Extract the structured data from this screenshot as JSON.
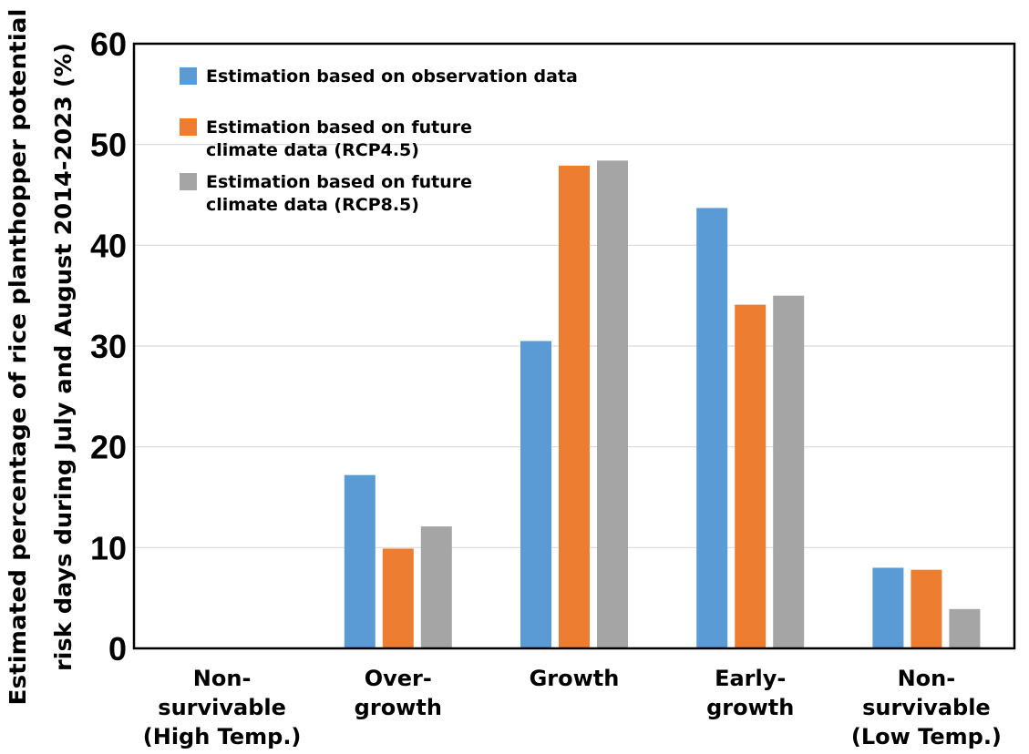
{
  "chart_data": {
    "type": "bar",
    "title": "",
    "xlabel": "",
    "ylabel_lines": [
      "Estimated percentage of rice planthopper potential",
      "risk days during July and August 2014-2023 (%)"
    ],
    "ylim": [
      0,
      60
    ],
    "yticks": [
      0,
      10,
      20,
      30,
      40,
      50,
      60
    ],
    "grid": true,
    "legend_position": "top-left",
    "categories": [
      [
        "Non-",
        "survivable",
        "(High Temp.)"
      ],
      [
        "Over-",
        "growth"
      ],
      [
        "Growth"
      ],
      [
        "Early-",
        "growth"
      ],
      [
        "Non-",
        "survivable",
        "(Low Temp.)"
      ]
    ],
    "series": [
      {
        "name": "Estimation based on observation data",
        "legend_lines": [
          "Estimation based on observation data"
        ],
        "color": "#5B9BD5",
        "values": [
          0,
          17.2,
          30.5,
          43.7,
          8.0
        ]
      },
      {
        "name": "Estimation based on future climate data (RCP4.5)",
        "legend_lines": [
          "Estimation based on future",
          "climate data (RCP4.5)"
        ],
        "color": "#ED7D31",
        "values": [
          0,
          9.9,
          47.9,
          34.1,
          7.8
        ]
      },
      {
        "name": "Estimation based on future climate data (RCP8.5)",
        "legend_lines": [
          "Estimation based on future",
          "climate data (RCP8.5)"
        ],
        "color": "#A5A5A5",
        "values": [
          0,
          12.1,
          48.4,
          35.0,
          3.9
        ]
      }
    ]
  }
}
